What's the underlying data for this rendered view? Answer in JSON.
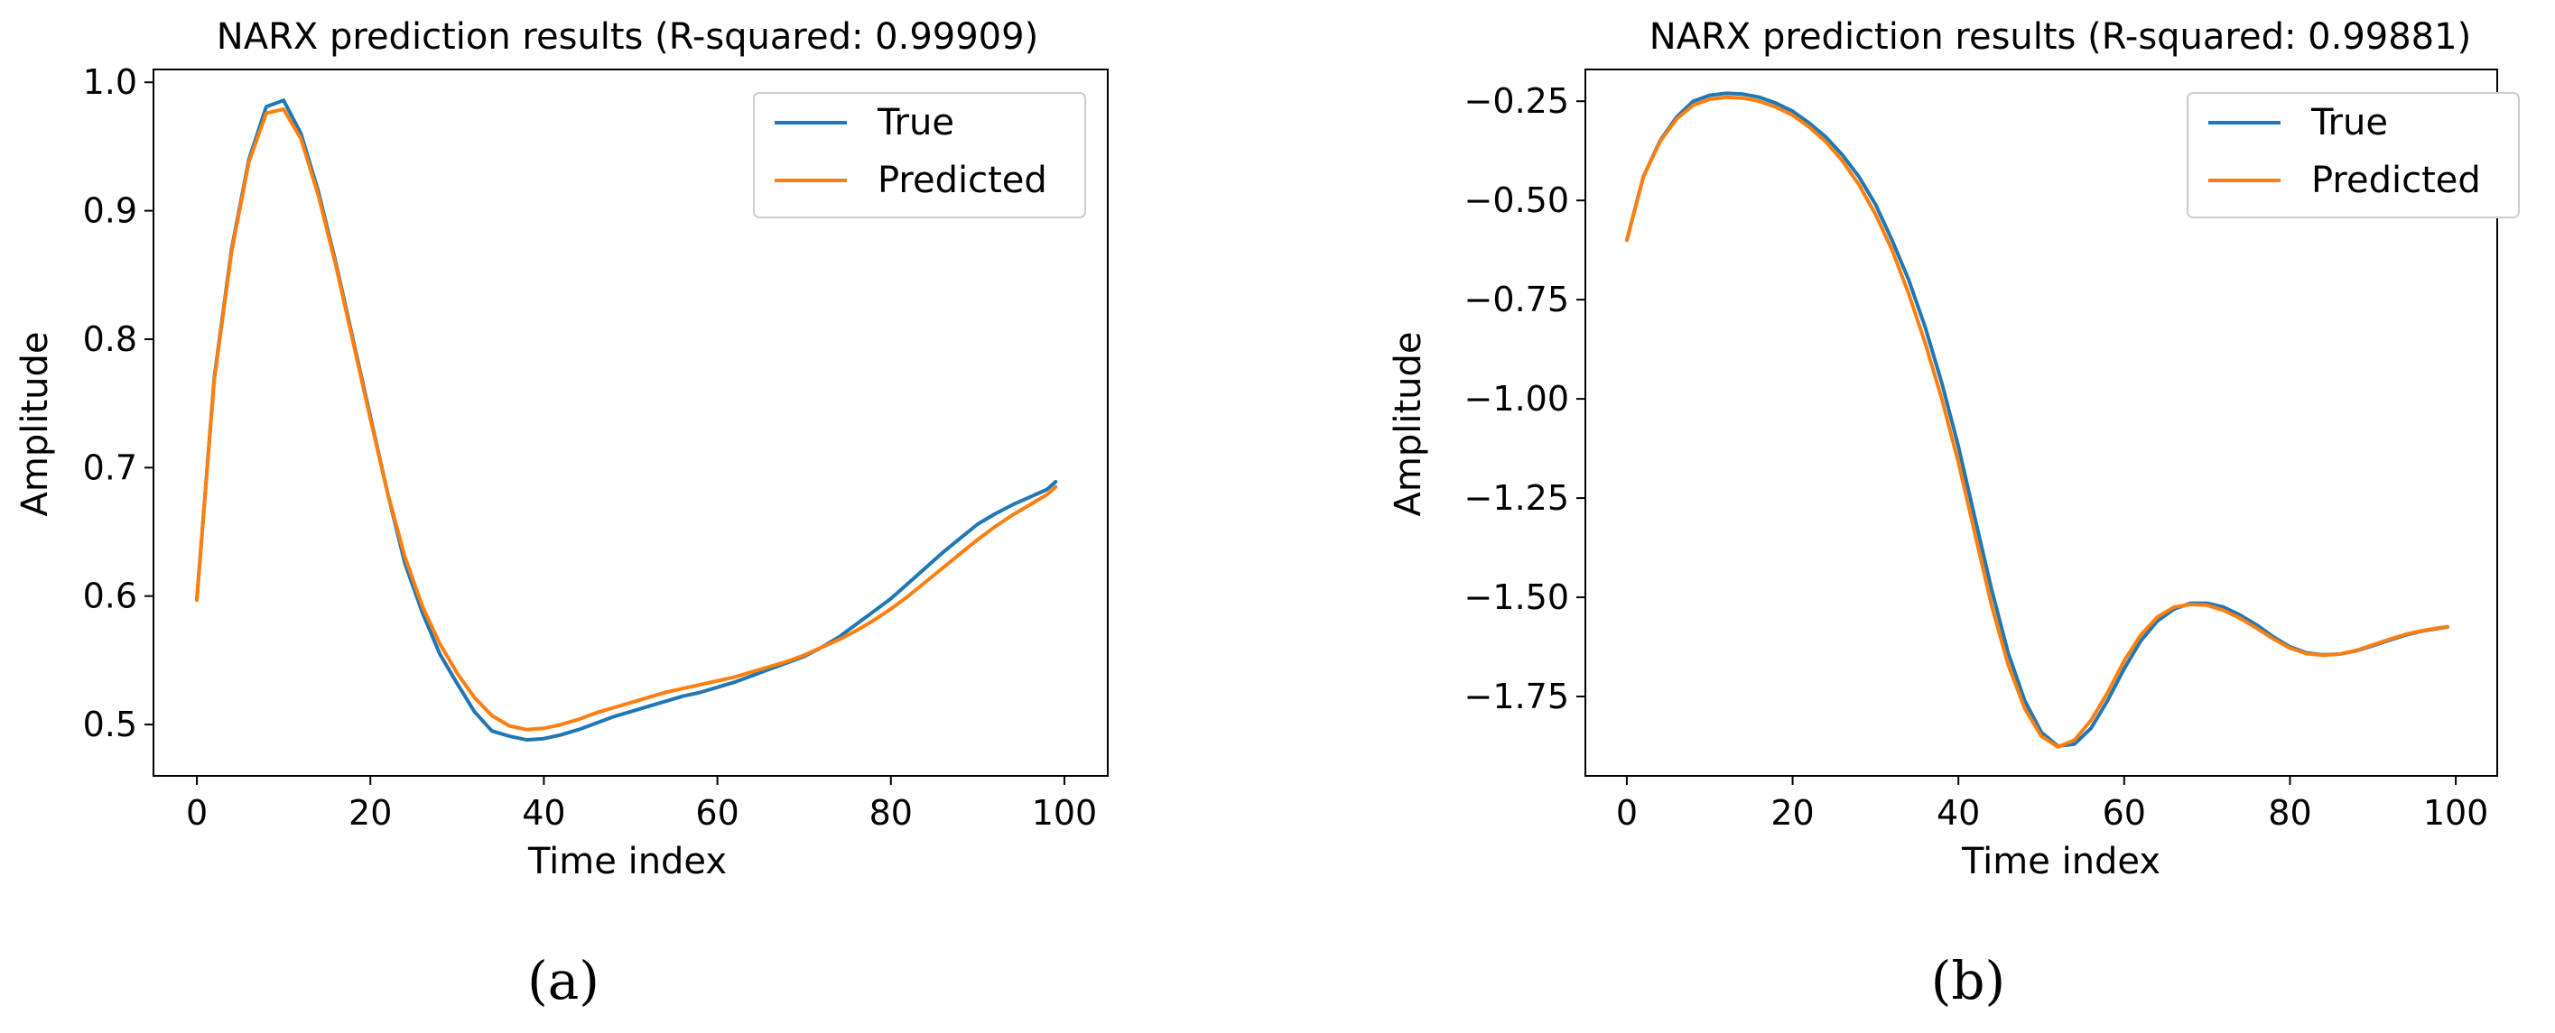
{
  "chart_data": [
    {
      "type": "line",
      "panel_label": "(a)",
      "title": "NARX prediction results (R-squared: 0.99909)",
      "xlabel": "Time index",
      "ylabel": "Amplitude",
      "xlim": [
        -5,
        105
      ],
      "ylim": [
        0.46,
        1.01
      ],
      "xticks": [
        0,
        20,
        40,
        60,
        80,
        100
      ],
      "yticks": [
        0.5,
        0.6,
        0.7,
        0.8,
        0.9,
        1.0
      ],
      "xtick_labels": [
        "0",
        "20",
        "40",
        "60",
        "80",
        "100"
      ],
      "ytick_labels": [
        "0.5",
        "0.6",
        "0.7",
        "0.8",
        "0.9",
        "1.0"
      ],
      "legend_position": "upper-right",
      "x": [
        0,
        2,
        4,
        6,
        8,
        10,
        12,
        14,
        16,
        18,
        20,
        22,
        24,
        26,
        28,
        30,
        32,
        34,
        36,
        38,
        40,
        42,
        44,
        46,
        48,
        50,
        52,
        54,
        56,
        58,
        60,
        62,
        64,
        66,
        68,
        70,
        72,
        74,
        76,
        78,
        80,
        82,
        84,
        86,
        88,
        90,
        92,
        94,
        96,
        98,
        99
      ],
      "series": [
        {
          "name": "True",
          "color": "#1f77b4",
          "values": [
            0.597,
            0.77,
            0.87,
            0.94,
            0.981,
            0.986,
            0.96,
            0.915,
            0.86,
            0.8,
            0.74,
            0.68,
            0.625,
            0.587,
            0.555,
            0.532,
            0.51,
            0.495,
            0.491,
            0.488,
            0.489,
            0.492,
            0.496,
            0.501,
            0.506,
            0.51,
            0.514,
            0.518,
            0.522,
            0.525,
            0.529,
            0.533,
            0.538,
            0.543,
            0.548,
            0.553,
            0.56,
            0.568,
            0.578,
            0.588,
            0.598,
            0.61,
            0.622,
            0.634,
            0.645,
            0.656,
            0.664,
            0.671,
            0.677,
            0.683,
            0.689
          ]
        },
        {
          "name": "Predicted",
          "color": "#ff7f0e",
          "values": [
            0.597,
            0.768,
            0.868,
            0.938,
            0.976,
            0.979,
            0.956,
            0.912,
            0.858,
            0.798,
            0.738,
            0.68,
            0.63,
            0.592,
            0.563,
            0.54,
            0.521,
            0.507,
            0.499,
            0.496,
            0.497,
            0.5,
            0.504,
            0.509,
            0.513,
            0.517,
            0.521,
            0.525,
            0.528,
            0.531,
            0.534,
            0.537,
            0.541,
            0.545,
            0.549,
            0.554,
            0.56,
            0.566,
            0.573,
            0.581,
            0.59,
            0.6,
            0.611,
            0.622,
            0.633,
            0.644,
            0.654,
            0.663,
            0.671,
            0.679,
            0.685
          ]
        }
      ]
    },
    {
      "type": "line",
      "panel_label": "(b)",
      "title": "NARX prediction results (R-squared: 0.99881)",
      "xlabel": "Time index",
      "ylabel": "Amplitude",
      "xlim": [
        -5,
        105
      ],
      "ylim": [
        -1.95,
        -0.17
      ],
      "xticks": [
        0,
        20,
        40,
        60,
        80,
        100
      ],
      "yticks": [
        -0.25,
        -0.5,
        -0.75,
        -1.0,
        -1.25,
        -1.5,
        -1.75
      ],
      "xtick_labels": [
        "0",
        "20",
        "40",
        "60",
        "80",
        "100"
      ],
      "ytick_labels": [
        "−0.25",
        "−0.50",
        "−0.75",
        "−1.00",
        "−1.25",
        "−1.50",
        "−1.75"
      ],
      "legend_position": "upper-right",
      "x": [
        0,
        2,
        4,
        6,
        8,
        10,
        12,
        14,
        16,
        18,
        20,
        22,
        24,
        26,
        28,
        30,
        32,
        34,
        36,
        38,
        40,
        42,
        44,
        46,
        48,
        50,
        52,
        54,
        56,
        58,
        60,
        62,
        64,
        66,
        68,
        70,
        72,
        74,
        76,
        78,
        80,
        82,
        84,
        86,
        88,
        90,
        92,
        94,
        96,
        98,
        99
      ],
      "series": [
        {
          "name": "True",
          "color": "#1f77b4",
          "values": [
            -0.6,
            -0.44,
            -0.35,
            -0.29,
            -0.25,
            -0.235,
            -0.23,
            -0.232,
            -0.24,
            -0.255,
            -0.275,
            -0.305,
            -0.34,
            -0.385,
            -0.44,
            -0.51,
            -0.6,
            -0.7,
            -0.82,
            -0.96,
            -1.12,
            -1.3,
            -1.48,
            -1.64,
            -1.76,
            -1.84,
            -1.875,
            -1.87,
            -1.83,
            -1.76,
            -1.68,
            -1.61,
            -1.56,
            -1.53,
            -1.515,
            -1.515,
            -1.525,
            -1.545,
            -1.57,
            -1.6,
            -1.625,
            -1.64,
            -1.645,
            -1.643,
            -1.635,
            -1.622,
            -1.608,
            -1.595,
            -1.585,
            -1.578,
            -1.575
          ]
        },
        {
          "name": "Predicted",
          "color": "#ff7f0e",
          "values": [
            -0.6,
            -0.44,
            -0.352,
            -0.295,
            -0.26,
            -0.245,
            -0.24,
            -0.242,
            -0.25,
            -0.265,
            -0.285,
            -0.315,
            -0.352,
            -0.4,
            -0.46,
            -0.535,
            -0.625,
            -0.735,
            -0.86,
            -1.0,
            -1.16,
            -1.34,
            -1.52,
            -1.67,
            -1.78,
            -1.85,
            -1.877,
            -1.86,
            -1.81,
            -1.74,
            -1.66,
            -1.595,
            -1.55,
            -1.525,
            -1.518,
            -1.52,
            -1.533,
            -1.553,
            -1.578,
            -1.605,
            -1.628,
            -1.642,
            -1.646,
            -1.643,
            -1.634,
            -1.62,
            -1.606,
            -1.593,
            -1.584,
            -1.577,
            -1.574
          ]
        }
      ]
    }
  ]
}
